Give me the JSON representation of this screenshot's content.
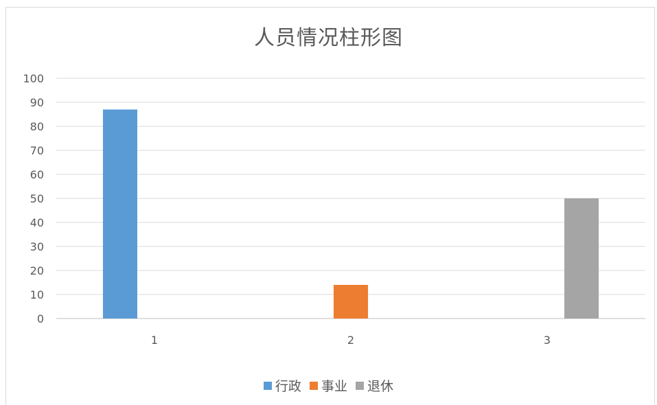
{
  "chart_data": {
    "type": "bar",
    "title": "人员情况柱形图",
    "categories": [
      "1",
      "2",
      "3"
    ],
    "series": [
      {
        "name": "行政",
        "color": "#5b9bd5",
        "values": [
          87,
          null,
          null
        ]
      },
      {
        "name": "事业",
        "color": "#ed7d31",
        "values": [
          null,
          14,
          null
        ]
      },
      {
        "name": "退休",
        "color": "#a5a5a5",
        "values": [
          null,
          null,
          50
        ]
      }
    ],
    "ylim": [
      0,
      100
    ],
    "yticks": [
      "0",
      "10",
      "20",
      "30",
      "40",
      "50",
      "60",
      "70",
      "80",
      "90",
      "100"
    ],
    "grid": true,
    "legend_position": "bottom"
  }
}
